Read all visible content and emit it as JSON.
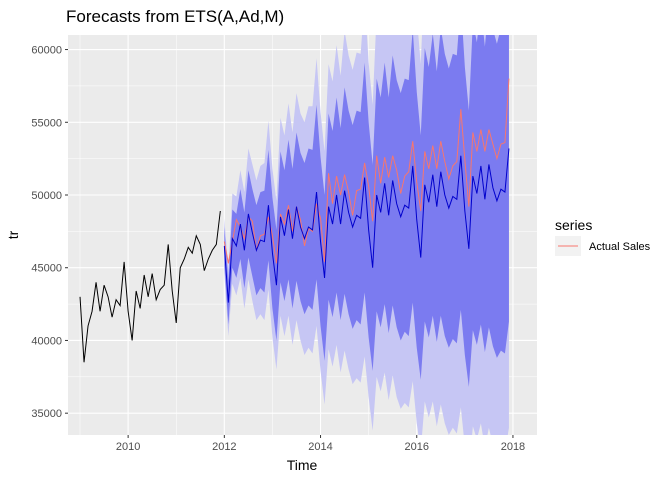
{
  "chart_data": {
    "type": "line",
    "title": "Forecasts from ETS(A,Ad,M)",
    "xlabel": "Time",
    "ylabel": "tr",
    "xlim": [
      2008.75,
      2018.5
    ],
    "ylim": [
      33500,
      61000
    ],
    "x_ticks": [
      2010,
      2012,
      2014,
      2016,
      2018
    ],
    "x_tick_labels": [
      "2010",
      "2012",
      "2014",
      "2016",
      "2018"
    ],
    "y_ticks": [
      35000,
      40000,
      45000,
      50000,
      55000,
      60000
    ],
    "y_tick_labels": [
      "35000",
      "40000",
      "45000",
      "50000",
      "55000",
      "60000"
    ],
    "grid": true,
    "legend": {
      "title": "series",
      "placement": "right",
      "entries": [
        "Actual Sales"
      ]
    },
    "colors": {
      "panel": "#ebebeb",
      "grid": "#ffffff",
      "history": "#000000",
      "forecast": "#0000cc",
      "band80": "#7b7bf0",
      "band95": "#c6c6f4",
      "actual": "#f8766d"
    },
    "history": {
      "start": 2009,
      "frequency": 12,
      "values": [
        43000,
        38500,
        41000,
        42000,
        44000,
        42000,
        43800,
        43000,
        41600,
        42800,
        42400,
        45400,
        42000,
        40000,
        43400,
        42200,
        44500,
        43000,
        44600,
        42800,
        43500,
        43800,
        46600,
        43400,
        41200,
        45000,
        45600,
        46400,
        46000,
        47200,
        46600,
        44800,
        45600,
        46200,
        46600,
        48900
      ]
    },
    "forecast": {
      "start": 2012,
      "frequency": 12,
      "point": [
        46500,
        42600,
        47000,
        46500,
        48000,
        46200,
        48700,
        47400,
        46200,
        46900,
        46800,
        49300,
        46000,
        43800,
        48500,
        47200,
        49000,
        47000,
        49200,
        47800,
        47000,
        47800,
        47600,
        50200,
        46800,
        44300,
        49200,
        48000,
        50000,
        48000,
        50300,
        48800,
        47800,
        48600,
        48400,
        51200,
        47600,
        45000,
        50000,
        48800,
        50800,
        48600,
        51000,
        49400,
        48500,
        49300,
        49100,
        52000,
        48300,
        45700,
        50700,
        49500,
        51400,
        49200,
        51600,
        50000,
        49100,
        49900,
        49700,
        52700,
        48900,
        46300,
        51300,
        50100,
        52000,
        49700,
        52100,
        50500,
        49600,
        50400,
        50200,
        53200
      ],
      "lo80": [
        45200,
        41100,
        45000,
        44300,
        45600,
        43600,
        45700,
        44400,
        43100,
        43600,
        43300,
        45500,
        42200,
        40000,
        44000,
        42700,
        44200,
        42200,
        44100,
        42700,
        41800,
        42400,
        42100,
        44200,
        41000,
        38600,
        42800,
        41600,
        43300,
        41400,
        43200,
        41800,
        40800,
        41400,
        41100,
        43300,
        40200,
        37900,
        42000,
        40900,
        42500,
        40500,
        42400,
        40900,
        40000,
        40600,
        40300,
        42600,
        39500,
        37300,
        41300,
        40200,
        41700,
        39900,
        41700,
        40300,
        39500,
        40100,
        39800,
        42100,
        39000,
        36800,
        40700,
        39700,
        41100,
        39200,
        40900,
        39600,
        38800,
        39300,
        39100,
        41300
      ],
      "hi80": [
        47800,
        44100,
        49000,
        48700,
        50400,
        48800,
        51700,
        50400,
        49300,
        50200,
        50300,
        53100,
        49800,
        47600,
        53000,
        51700,
        53800,
        51800,
        54300,
        52900,
        52200,
        53200,
        53100,
        56200,
        52600,
        50000,
        55600,
        54400,
        56700,
        54600,
        57400,
        55800,
        54800,
        55800,
        55700,
        59100,
        55000,
        52100,
        58000,
        56700,
        59100,
        56700,
        59600,
        57900,
        57000,
        58000,
        57900,
        61400,
        57100,
        54100,
        60100,
        58800,
        61100,
        58500,
        61500,
        59700,
        58700,
        59700,
        59600,
        63300,
        58800,
        55800,
        61900,
        60500,
        62900,
        60200,
        63300,
        61400,
        60400,
        61500,
        61300,
        65100
      ],
      "lo95": [
        44600,
        40300,
        43900,
        43100,
        44300,
        42200,
        44200,
        42700,
        41400,
        41800,
        41400,
        43500,
        40200,
        38000,
        41700,
        40300,
        41700,
        39700,
        41400,
        40000,
        39000,
        39500,
        39100,
        41000,
        37900,
        35600,
        39400,
        38200,
        39700,
        37800,
        39300,
        38000,
        37000,
        37400,
        37100,
        38900,
        36100,
        33800,
        37500,
        36500,
        37800,
        35900,
        37600,
        36100,
        35300,
        35700,
        35400,
        37200,
        34300,
        32400,
        35800,
        34700,
        35800,
        34100,
        35600,
        34300,
        33500,
        34000,
        33600,
        35400,
        32700,
        30800,
        34100,
        33200,
        34300,
        32600,
        34000,
        32800,
        32100,
        32400,
        32200,
        34000
      ],
      "hi95": [
        48400,
        44900,
        50100,
        49900,
        51700,
        50200,
        53200,
        52100,
        51000,
        52000,
        52200,
        55100,
        51800,
        49600,
        55300,
        54100,
        56300,
        54300,
        57000,
        55600,
        55000,
        56100,
        56100,
        59400,
        55700,
        53000,
        59000,
        57800,
        60300,
        58200,
        61300,
        59600,
        58600,
        59800,
        59700,
        63500,
        59100,
        56200,
        62500,
        61100,
        63800,
        61300,
        64400,
        62700,
        61700,
        62900,
        62800,
        66800,
        62300,
        59000,
        65600,
        64300,
        67000,
        64300,
        67600,
        65700,
        64700,
        65800,
        65800,
        70000,
        65100,
        61800,
        68500,
        67000,
        69700,
        66800,
        70200,
        68200,
        67100,
        68400,
        68200,
        72400
      ]
    },
    "actual": {
      "name": "Actual Sales",
      "start": 2012,
      "frequency": 12,
      "values": [
        46800,
        45300,
        46800,
        48300,
        47800,
        47000,
        48500,
        48200,
        46200,
        47200,
        47300,
        48500,
        47200,
        45300,
        48700,
        48000,
        49300,
        47500,
        49200,
        48300,
        46500,
        47700,
        47500,
        49400,
        48400,
        45400,
        51500,
        49400,
        51300,
        50000,
        51400,
        50200,
        48600,
        50300,
        50400,
        52200,
        50600,
        48200,
        52700,
        50800,
        52600,
        51200,
        52700,
        51700,
        50100,
        51300,
        51600,
        53700,
        50900,
        48900,
        53000,
        51800,
        53400,
        51800,
        53700,
        52300,
        51100,
        52000,
        52300,
        55900,
        52400,
        49200,
        54300,
        53000,
        54500,
        53000,
        54500,
        53500,
        52500,
        53500,
        53600,
        58000
      ]
    }
  }
}
